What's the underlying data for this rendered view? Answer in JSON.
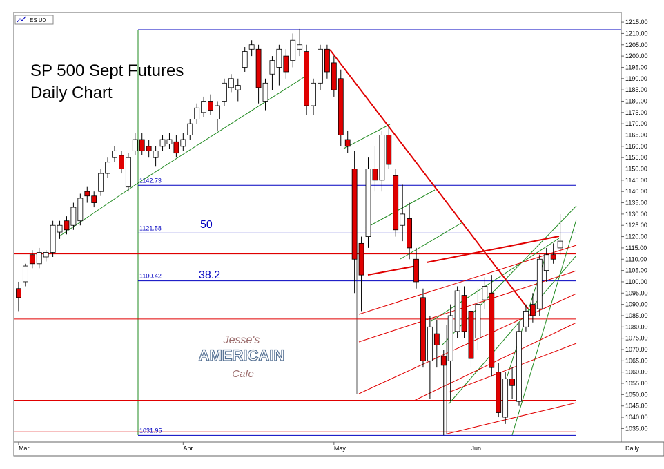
{
  "chart_data": {
    "type": "candlestick",
    "symbol": "ES U0",
    "title": "SP 500 Sept Futures",
    "subtitle": "Daily Chart",
    "period": "Daily",
    "open": [
      1097,
      1100,
      1112,
      1108,
      1111,
      1113,
      1122,
      1127,
      1125,
      1127,
      1140,
      1138,
      1140,
      1148,
      1155,
      1156,
      1142,
      1158,
      1163,
      1160,
      1155,
      1160,
      1161,
      1162,
      1160,
      1165,
      1172,
      1175,
      1180,
      1172,
      1180,
      1186,
      1185,
      1195,
      1203,
      1203,
      1180,
      1192,
      1195,
      1200,
      1198,
      1203,
      1202,
      1178,
      1188,
      1203,
      1197,
      1190,
      1163,
      1150,
      1117,
      1120,
      1150,
      1145,
      1165,
      1147,
      1125,
      1128,
      1110,
      1093,
      1065,
      1077,
      1067,
      1065,
      1078,
      1094,
      1087,
      1075,
      1092,
      1095,
      1060,
      1040,
      1057,
      1047,
      1080,
      1090,
      1088,
      1105,
      1112,
      1115
    ],
    "high": [
      1100,
      1108,
      1114,
      1115,
      1114,
      1127,
      1127,
      1129,
      1135,
      1139,
      1142,
      1140,
      1150,
      1155,
      1160,
      1158,
      1157,
      1166,
      1166,
      1163,
      1160,
      1165,
      1166,
      1165,
      1166,
      1172,
      1179,
      1182,
      1183,
      1180,
      1190,
      1192,
      1190,
      1204,
      1207,
      1205,
      1190,
      1200,
      1205,
      1203,
      1210,
      1212,
      1205,
      1190,
      1205,
      1205,
      1200,
      1194,
      1167,
      1158,
      1120,
      1155,
      1160,
      1167,
      1170,
      1150,
      1143,
      1135,
      1115,
      1097,
      1085,
      1083,
      1070,
      1090,
      1098,
      1098,
      1092,
      1097,
      1102,
      1103,
      1064,
      1060,
      1062,
      1082,
      1090,
      1095,
      1112,
      1115,
      1117,
      1130
    ],
    "low": [
      1087,
      1098,
      1106,
      1106,
      1109,
      1111,
      1119,
      1121,
      1123,
      1125,
      1135,
      1133,
      1138,
      1146,
      1153,
      1148,
      1140,
      1156,
      1156,
      1155,
      1151,
      1158,
      1159,
      1155,
      1158,
      1163,
      1170,
      1173,
      1174,
      1167,
      1178,
      1184,
      1180,
      1193,
      1200,
      1179,
      1176,
      1185,
      1187,
      1190,
      1195,
      1200,
      1174,
      1174,
      1185,
      1190,
      1182,
      1160,
      1157,
      1095,
      1087,
      1115,
      1140,
      1140,
      1150,
      1120,
      1118,
      1110,
      1097,
      1062,
      1048,
      1062,
      1032,
      1047,
      1075,
      1075,
      1062,
      1070,
      1088,
      1058,
      1040,
      1037,
      1048,
      1045,
      1078,
      1082,
      1085,
      1100,
      1108,
      1112
    ],
    "close": [
      1093,
      1107,
      1108,
      1113,
      1113,
      1125,
      1125,
      1123,
      1133,
      1137,
      1138,
      1135,
      1148,
      1153,
      1158,
      1150,
      1155,
      1163,
      1158,
      1158,
      1158,
      1163,
      1163,
      1157,
      1163,
      1170,
      1177,
      1180,
      1176,
      1178,
      1188,
      1190,
      1187,
      1202,
      1205,
      1186,
      1188,
      1198,
      1203,
      1193,
      1207,
      1205,
      1178,
      1188,
      1203,
      1193,
      1185,
      1165,
      1160,
      1110,
      1103,
      1150,
      1145,
      1165,
      1152,
      1123,
      1130,
      1115,
      1100,
      1065,
      1080,
      1072,
      1063,
      1085,
      1096,
      1078,
      1066,
      1090,
      1098,
      1062,
      1042,
      1057,
      1054,
      1078,
      1087,
      1085,
      1110,
      1112,
      1110,
      1118
    ],
    "up_color": "#ffffff",
    "down_color": "#e00000",
    "xlim": [
      -0.7,
      87.9
    ],
    "xticks": [
      {
        "value": 0,
        "label": "Mar"
      },
      {
        "value": 24,
        "label": "Apr"
      },
      {
        "value": 46,
        "label": "May"
      },
      {
        "value": 66,
        "label": "Jun"
      }
    ],
    "ylim": [
      1029,
      1219
    ],
    "yticks": [
      {
        "value": 1035,
        "label": "1035.00"
      },
      {
        "value": 1040,
        "label": "1040.00"
      },
      {
        "value": 1045,
        "label": "1045.00"
      },
      {
        "value": 1050,
        "label": "1050.00"
      },
      {
        "value": 1055,
        "label": "1055.00"
      },
      {
        "value": 1060,
        "label": "1060.00"
      },
      {
        "value": 1065,
        "label": "1065.00"
      },
      {
        "value": 1070,
        "label": "1070.00"
      },
      {
        "value": 1075,
        "label": "1075.00"
      },
      {
        "value": 1080,
        "label": "1080.00"
      },
      {
        "value": 1085,
        "label": "1085.00"
      },
      {
        "value": 1090,
        "label": "1090.00"
      },
      {
        "value": 1095,
        "label": "1095.00"
      },
      {
        "value": 1100,
        "label": "1100.00"
      },
      {
        "value": 1105,
        "label": "1105.00"
      },
      {
        "value": 1110,
        "label": "1110.00"
      },
      {
        "value": 1115,
        "label": "1115.00"
      },
      {
        "value": 1120,
        "label": "1120.00"
      },
      {
        "value": 1125,
        "label": "1125.00"
      },
      {
        "value": 1130,
        "label": "1130.00"
      },
      {
        "value": 1135,
        "label": "1135.00"
      },
      {
        "value": 1140,
        "label": "1140.00"
      },
      {
        "value": 1145,
        "label": "1145.00"
      },
      {
        "value": 1150,
        "label": "1150.00"
      },
      {
        "value": 1155,
        "label": "1155.00"
      },
      {
        "value": 1160,
        "label": "1160.00"
      },
      {
        "value": 1165,
        "label": "1165.00"
      },
      {
        "value": 1170,
        "label": "1170.00"
      },
      {
        "value": 1175,
        "label": "1175.00"
      },
      {
        "value": 1180,
        "label": "1180.00"
      },
      {
        "value": 1185,
        "label": "1185.00"
      },
      {
        "value": 1190,
        "label": "1190.00"
      },
      {
        "value": 1195,
        "label": "1195.00"
      },
      {
        "value": 1200,
        "label": "1200.00"
      },
      {
        "value": 1205,
        "label": "1205.00"
      },
      {
        "value": 1210,
        "label": "1210.00"
      },
      {
        "value": 1215,
        "label": "1215.00"
      }
    ],
    "fib_levels": [
      {
        "value": 1142.73,
        "label": "1142.73"
      },
      {
        "value": 1121.58,
        "label": "1121.58"
      },
      {
        "value": 1100.42,
        "label": "1100.42"
      },
      {
        "value": 1031.95,
        "label": "1031.95"
      }
    ],
    "fib_color": "#0000c0",
    "retracements": [
      "50",
      "38.2"
    ],
    "red_lines": [
      1112.5,
      1083.5,
      1047.5,
      1033.5
    ],
    "red_line_color": "#e00000",
    "logo": [
      "Jesse's",
      "AMERICAIN",
      "Cafe"
    ]
  }
}
